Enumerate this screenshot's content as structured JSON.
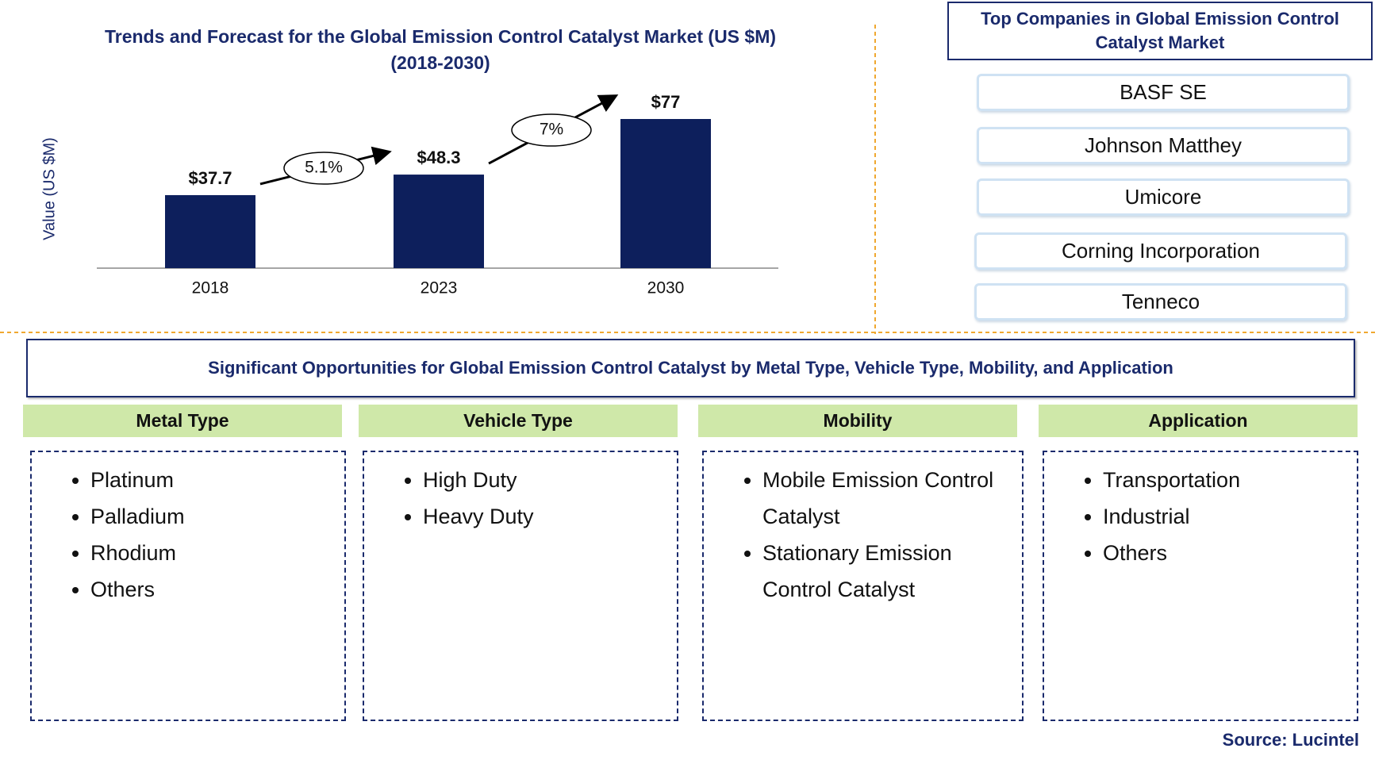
{
  "chart_data": {
    "type": "bar",
    "title": "Trends and Forecast for the Global Emission Control Catalyst Market (US $M)",
    "subtitle": "(2018-2030)",
    "y_label": "Value (US $M)",
    "categories": [
      "2018",
      "2023",
      "2030"
    ],
    "values": [
      37.7,
      48.3,
      77
    ],
    "value_labels": [
      "$37.7",
      "$48.3",
      "$77"
    ],
    "color": "#0d1f5c",
    "annotations": [
      "5.1%",
      "7%"
    ]
  },
  "companies": {
    "title": "Top Companies in Global Emission Control Catalyst Market",
    "items": [
      "BASF SE",
      "Johnson Matthey",
      "Umicore",
      "Corning Incorporation",
      "Tenneco"
    ]
  },
  "opportunities": {
    "title": "Significant Opportunities for Global Emission Control Catalyst  by Metal Type, Vehicle Type, Mobility,  and Application",
    "segments": [
      {
        "title": "Metal Type",
        "items": [
          "Platinum",
          "Palladium",
          "Rhodium",
          "Others"
        ]
      },
      {
        "title": "Vehicle Type",
        "items": [
          "High Duty",
          "Heavy Duty"
        ]
      },
      {
        "title": "Mobility",
        "items": [
          "Mobile Emission Control Catalyst",
          "Stationary Emission Control Catalyst"
        ]
      },
      {
        "title": "Application",
        "items": [
          "Transportation",
          "Industrial",
          "Others"
        ]
      }
    ]
  },
  "source": "Source: Lucintel"
}
